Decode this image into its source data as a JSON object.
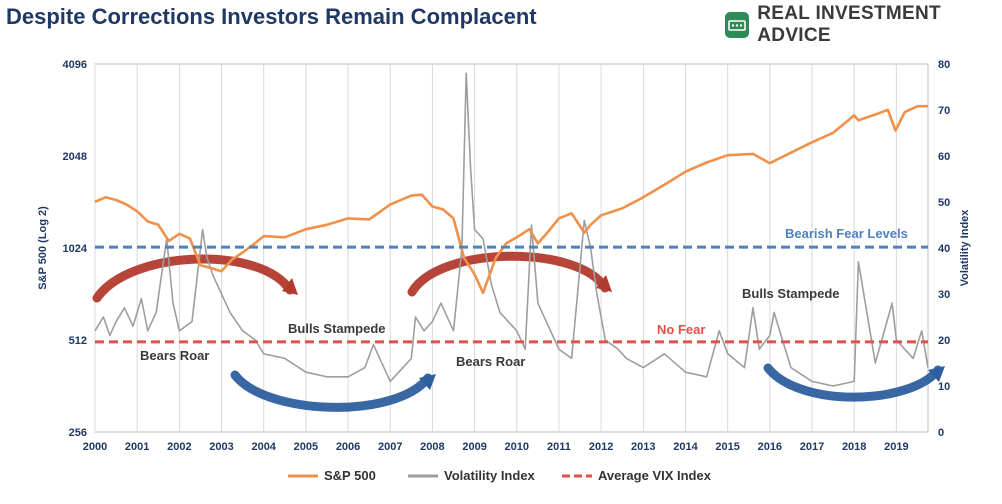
{
  "title": "Despite Corrections Investors Remain Complacent",
  "brand": {
    "name": "REAL INVESTMENT ADVICE",
    "icon": "chart-logo-icon",
    "color": "#2e8b57"
  },
  "chart_data": {
    "type": "line",
    "y_left_label": "S&P 500 (Log 2)",
    "y_right_label": "Volatility Index",
    "y_left_ticks": [
      "256",
      "512",
      "1024",
      "2048",
      "4096"
    ],
    "y_left_range": [
      256,
      4096
    ],
    "y_left_scale": "log2",
    "y_right_ticks": [
      "0",
      "10",
      "20",
      "30",
      "40",
      "50",
      "60",
      "70",
      "80"
    ],
    "y_right_range": [
      0,
      80
    ],
    "x_ticks": [
      "2000",
      "2001",
      "2002",
      "2003",
      "2004",
      "2005",
      "2006",
      "2007",
      "2008",
      "2009",
      "2010",
      "2011",
      "2012",
      "2013",
      "2014",
      "2015",
      "2016",
      "2017",
      "2018",
      "2019"
    ],
    "x_range": [
      2000,
      2019.75
    ],
    "grid": "vertical",
    "colors": {
      "sp500": "#f0914a",
      "vix": "#9e9e9e",
      "avg_vix": "#e0514b",
      "bearish": "#4f81bd",
      "red_arrow": "#b23a2e",
      "blue_arrow": "#2e5f9e"
    },
    "series": [
      {
        "name": "S&P 500",
        "axis": "left",
        "color": "#f0914a",
        "x": [
          2000.0,
          2000.25,
          2000.5,
          2000.75,
          2001.0,
          2001.25,
          2001.5,
          2001.75,
          2002.0,
          2002.25,
          2002.5,
          2002.75,
          2003.0,
          2003.25,
          2003.5,
          2003.75,
          2004.0,
          2004.5,
          2005.0,
          2005.5,
          2006.0,
          2006.5,
          2007.0,
          2007.5,
          2007.75,
          2008.0,
          2008.25,
          2008.5,
          2008.75,
          2009.0,
          2009.2,
          2009.5,
          2009.75,
          2010.0,
          2010.3,
          2010.5,
          2010.75,
          2011.0,
          2011.3,
          2011.6,
          2011.75,
          2012.0,
          2012.5,
          2013.0,
          2013.5,
          2014.0,
          2014.5,
          2015.0,
          2015.6,
          2016.0,
          2016.5,
          2017.0,
          2017.5,
          2018.0,
          2018.1,
          2018.5,
          2018.8,
          2018.98,
          2019.2,
          2019.5,
          2019.75
        ],
        "values": [
          1450,
          1500,
          1470,
          1420,
          1350,
          1250,
          1220,
          1080,
          1140,
          1100,
          900,
          880,
          860,
          940,
          990,
          1050,
          1120,
          1110,
          1180,
          1220,
          1280,
          1270,
          1420,
          1520,
          1530,
          1400,
          1370,
          1280,
          950,
          840,
          730,
          950,
          1060,
          1110,
          1180,
          1060,
          1160,
          1280,
          1330,
          1150,
          1220,
          1310,
          1380,
          1500,
          1650,
          1820,
          1950,
          2060,
          2080,
          1940,
          2100,
          2270,
          2440,
          2780,
          2680,
          2800,
          2900,
          2480,
          2850,
          2980,
          2980
        ]
      },
      {
        "name": "Volatility Index",
        "axis": "right",
        "color": "#9e9e9e",
        "x": [
          2000.0,
          2000.2,
          2000.35,
          2000.5,
          2000.7,
          2000.9,
          2001.1,
          2001.25,
          2001.45,
          2001.7,
          2001.85,
          2002.0,
          2002.3,
          2002.55,
          2002.65,
          2002.8,
          2003.0,
          2003.2,
          2003.5,
          2003.8,
          2004.0,
          2004.5,
          2005.0,
          2005.5,
          2006.0,
          2006.4,
          2006.6,
          2007.0,
          2007.2,
          2007.5,
          2007.6,
          2007.8,
          2008.0,
          2008.2,
          2008.5,
          2008.7,
          2008.8,
          2008.9,
          2009.0,
          2009.2,
          2009.4,
          2009.6,
          2009.8,
          2010.0,
          2010.2,
          2010.35,
          2010.5,
          2010.8,
          2011.0,
          2011.3,
          2011.6,
          2011.75,
          2011.9,
          2012.1,
          2012.4,
          2012.6,
          2013.0,
          2013.5,
          2014.0,
          2014.5,
          2014.8,
          2015.0,
          2015.4,
          2015.6,
          2015.75,
          2016.0,
          2016.1,
          2016.5,
          2017.0,
          2017.5,
          2018.0,
          2018.1,
          2018.5,
          2018.9,
          2019.0,
          2019.4,
          2019.6,
          2019.75
        ],
        "values": [
          22,
          25,
          21,
          24,
          27,
          23,
          29,
          22,
          26,
          42,
          28,
          22,
          24,
          44,
          38,
          34,
          30,
          26,
          22,
          20,
          17,
          16,
          13,
          12,
          12,
          14,
          19,
          11,
          13,
          16,
          25,
          22,
          24,
          28,
          22,
          40,
          78,
          58,
          44,
          42,
          32,
          26,
          24,
          22,
          18,
          45,
          28,
          22,
          18,
          16,
          46,
          40,
          30,
          20,
          18,
          16,
          14,
          17,
          13,
          12,
          22,
          17,
          14,
          27,
          18,
          21,
          26,
          14,
          11,
          10,
          11,
          37,
          15,
          28,
          20,
          16,
          22,
          14
        ]
      },
      {
        "name": "Average VIX Index",
        "axis": "right",
        "color": "#e0514b",
        "values": [
          19.6
        ]
      },
      {
        "name": "Bearish Fear Levels",
        "axis": "right",
        "color": "#4f81bd",
        "values": [
          40.2
        ]
      }
    ],
    "annotations": [
      {
        "text": "Bearish Fear Levels",
        "color": "#4f81bd"
      },
      {
        "text": "No Fear",
        "color": "#e0514b"
      },
      {
        "text": "Bears Roar",
        "color": "#3a3a3a"
      },
      {
        "text": "Bulls Stampede",
        "color": "#3a3a3a"
      },
      {
        "text": "Bears Roar",
        "color": "#3a3a3a"
      },
      {
        "text": "Bulls Stampede",
        "color": "#3a3a3a"
      }
    ],
    "legend": [
      "S&P 500",
      "Volatility Index",
      "Average VIX Index"
    ],
    "legend_placement": "bottom"
  }
}
